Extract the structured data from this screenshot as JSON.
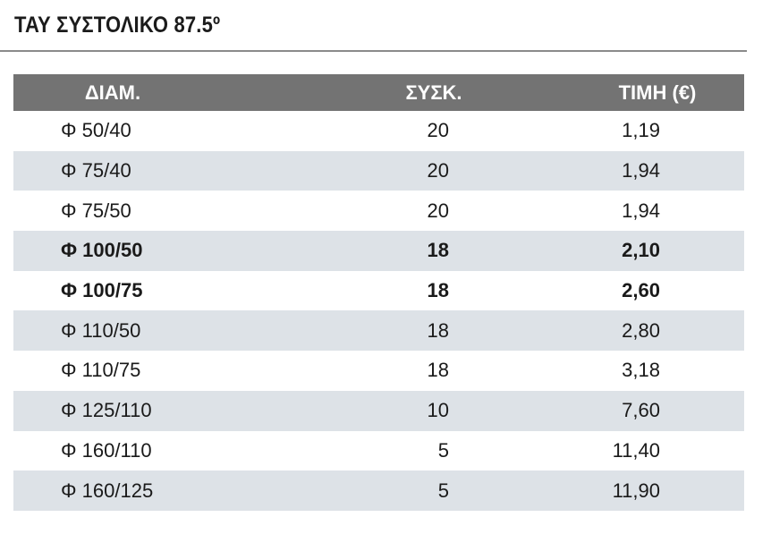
{
  "title": "ΤΑΥ ΣΥΣΤΟΛΙΚΟ 87.5º",
  "table": {
    "headers": [
      "ΔΙΑΜ.",
      "ΣΥΣΚ.",
      "ΤΙΜΗ (€)"
    ],
    "rows": [
      {
        "diam": "Φ 50/40",
        "pack": "20",
        "price": "1,19",
        "bold": false
      },
      {
        "diam": "Φ 75/40",
        "pack": "20",
        "price": "1,94",
        "bold": false
      },
      {
        "diam": "Φ 75/50",
        "pack": "20",
        "price": "1,94",
        "bold": false
      },
      {
        "diam": "Φ  100/50",
        "pack": "18",
        "price": "2,10",
        "bold": true
      },
      {
        "diam": "Φ  100/75",
        "pack": "18",
        "price": "2,60",
        "bold": true
      },
      {
        "diam": "Φ 110/50",
        "pack": "18",
        "price": "2,80",
        "bold": false
      },
      {
        "diam": "Φ 110/75",
        "pack": "18",
        "price": "3,18",
        "bold": false
      },
      {
        "diam": "Φ 125/110",
        "pack": "10",
        "price": "7,60",
        "bold": false
      },
      {
        "diam": "Φ 160/110",
        "pack": "5",
        "price": "11,40",
        "bold": false
      },
      {
        "diam": "Φ 160/125",
        "pack": "5",
        "price": "11,90",
        "bold": false
      }
    ]
  },
  "colors": {
    "header_bg": "#737373",
    "row_shade": "#dde2e7",
    "rule": "#8a8a8a"
  }
}
